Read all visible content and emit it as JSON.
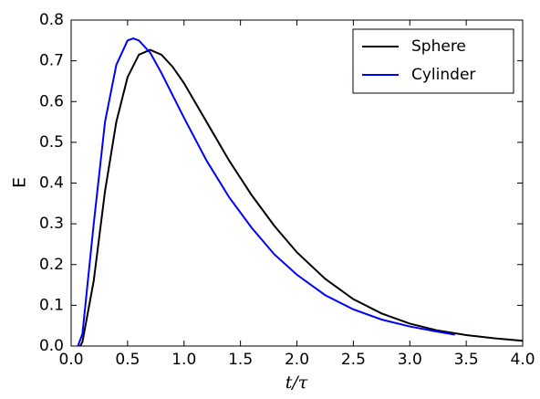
{
  "chart_data": {
    "type": "line",
    "xlabel": "t/τ",
    "ylabel": "E",
    "xlim": [
      0,
      4
    ],
    "ylim": [
      0,
      0.8
    ],
    "xticks": [
      {
        "value": 0,
        "label": "0.0"
      },
      0.5,
      {
        "value": 1,
        "label": "1.0"
      },
      1.5,
      {
        "value": 2,
        "label": "2.0"
      },
      2.5,
      {
        "value": 3,
        "label": "3.0"
      },
      3.5,
      {
        "value": 4,
        "label": "4.0"
      }
    ],
    "yticks": [
      {
        "value": 0,
        "label": "0.0"
      },
      0.1,
      0.2,
      0.3,
      0.4,
      0.5,
      0.6,
      0.7,
      0.8
    ],
    "legend": "upper right",
    "series": [
      {
        "name": "Sphere",
        "color": "#000000",
        "x": [
          0.08,
          0.1,
          0.2,
          0.3,
          0.4,
          0.5,
          0.6,
          0.7,
          0.8,
          0.9,
          1.0,
          1.2,
          1.4,
          1.6,
          1.8,
          2.0,
          2.25,
          2.5,
          2.75,
          3.0,
          3.25,
          3.5,
          3.75,
          4.0
        ],
        "values": [
          0,
          0.01,
          0.16,
          0.38,
          0.55,
          0.66,
          0.715,
          0.727,
          0.715,
          0.685,
          0.645,
          0.55,
          0.455,
          0.37,
          0.295,
          0.23,
          0.165,
          0.115,
          0.08,
          0.055,
          0.038,
          0.027,
          0.019,
          0.013
        ]
      },
      {
        "name": "Cylinder",
        "color": "#0000ff",
        "x": [
          0.06,
          0.1,
          0.2,
          0.3,
          0.4,
          0.5,
          0.55,
          0.6,
          0.7,
          0.8,
          0.9,
          1.0,
          1.2,
          1.4,
          1.6,
          1.8,
          2.0,
          2.25,
          2.5,
          2.75,
          3.0,
          3.25,
          3.4
        ],
        "values": [
          0,
          0.03,
          0.3,
          0.55,
          0.69,
          0.75,
          0.755,
          0.75,
          0.72,
          0.67,
          0.615,
          0.56,
          0.455,
          0.365,
          0.29,
          0.225,
          0.175,
          0.125,
          0.09,
          0.065,
          0.048,
          0.035,
          0.028
        ]
      }
    ]
  }
}
